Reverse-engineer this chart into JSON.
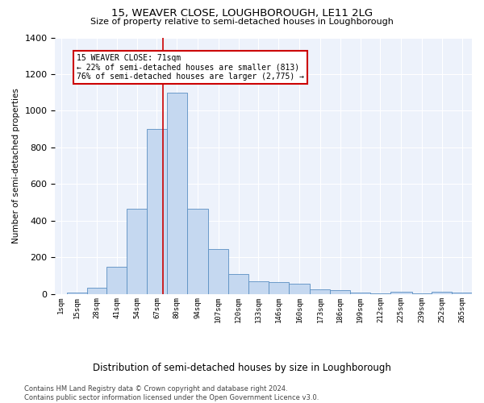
{
  "title": "15, WEAVER CLOSE, LOUGHBOROUGH, LE11 2LG",
  "subtitle": "Size of property relative to semi-detached houses in Loughborough",
  "xlabel": "Distribution of semi-detached houses by size in Loughborough",
  "ylabel": "Number of semi-detached properties",
  "property_size": 71,
  "property_label": "15 WEAVER CLOSE: 71sqm",
  "pct_smaller": 22,
  "count_smaller": 813,
  "pct_larger": 76,
  "count_larger": 2775,
  "bin_labels": [
    "1sqm",
    "15sqm",
    "28sqm",
    "41sqm",
    "54sqm",
    "67sqm",
    "80sqm",
    "94sqm",
    "107sqm",
    "120sqm",
    "133sqm",
    "146sqm",
    "160sqm",
    "173sqm",
    "186sqm",
    "199sqm",
    "212sqm",
    "225sqm",
    "239sqm",
    "252sqm",
    "265sqm"
  ],
  "bin_edges": [
    1,
    8.5,
    21.5,
    34.5,
    47.5,
    60.5,
    73.5,
    86.5,
    100.5,
    113.5,
    126.5,
    139.5,
    152.5,
    166.5,
    179.5,
    192.5,
    205.5,
    218.5,
    232.5,
    245.5,
    258.5,
    271.5
  ],
  "bin_heights": [
    0,
    10,
    35,
    150,
    465,
    900,
    1100,
    465,
    245,
    110,
    70,
    65,
    55,
    25,
    20,
    10,
    5,
    15,
    5,
    12,
    10
  ],
  "bar_color": "#c5d8f0",
  "bar_edge_color": "#5a8fc2",
  "line_color": "#cc0000",
  "annotation_box_color": "#cc0000",
  "background_color": "#edf2fb",
  "ylim": [
    0,
    1400
  ],
  "yticks": [
    0,
    200,
    400,
    600,
    800,
    1000,
    1200,
    1400
  ],
  "footnote": "Contains HM Land Registry data © Crown copyright and database right 2024.\nContains public sector information licensed under the Open Government Licence v3.0."
}
